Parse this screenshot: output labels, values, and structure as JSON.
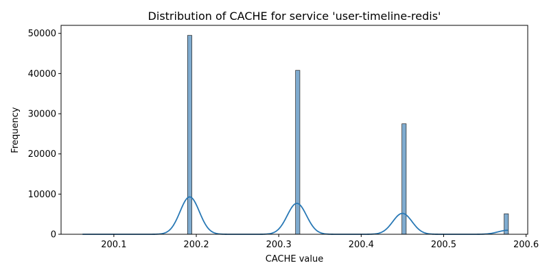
{
  "chart_data": {
    "type": "histogram",
    "title": "Distribution of CACHE for service 'user-timeline-redis'",
    "xlabel": "CACHE value",
    "ylabel": "Frequency",
    "xlim": [
      200.036,
      200.602
    ],
    "ylim": [
      0,
      52000
    ],
    "grid": false,
    "x_ticks": [
      200.1,
      200.2,
      200.3,
      200.4,
      200.5,
      200.6
    ],
    "x_tick_labels": [
      "200.1",
      "200.2",
      "200.3",
      "200.4",
      "200.5",
      "200.6"
    ],
    "y_ticks": [
      0,
      10000,
      20000,
      30000,
      40000,
      50000
    ],
    "y_tick_labels": [
      "0",
      "10000",
      "20000",
      "30000",
      "40000",
      "50000"
    ],
    "bin_width": 0.0052,
    "bars": [
      {
        "x": 200.192,
        "value": 49500
      },
      {
        "x": 200.323,
        "value": 40800
      },
      {
        "x": 200.452,
        "value": 27500
      },
      {
        "x": 200.576,
        "value": 5100
      }
    ],
    "kde": {
      "x_range": [
        200.062,
        200.578
      ],
      "peaks": [
        {
          "center": 200.192,
          "height": 9300,
          "sigma": 0.0117
        },
        {
          "center": 200.322,
          "height": 7700,
          "sigma": 0.0117
        },
        {
          "center": 200.45,
          "height": 5200,
          "sigma": 0.0117
        },
        {
          "center": 200.578,
          "height": 1000,
          "sigma": 0.0117
        }
      ]
    },
    "colors": {
      "bar_fill": "#7fabcf",
      "bar_edge": "#1f1f1f",
      "kde_line": "#2878b5",
      "axis": "#000000"
    }
  }
}
